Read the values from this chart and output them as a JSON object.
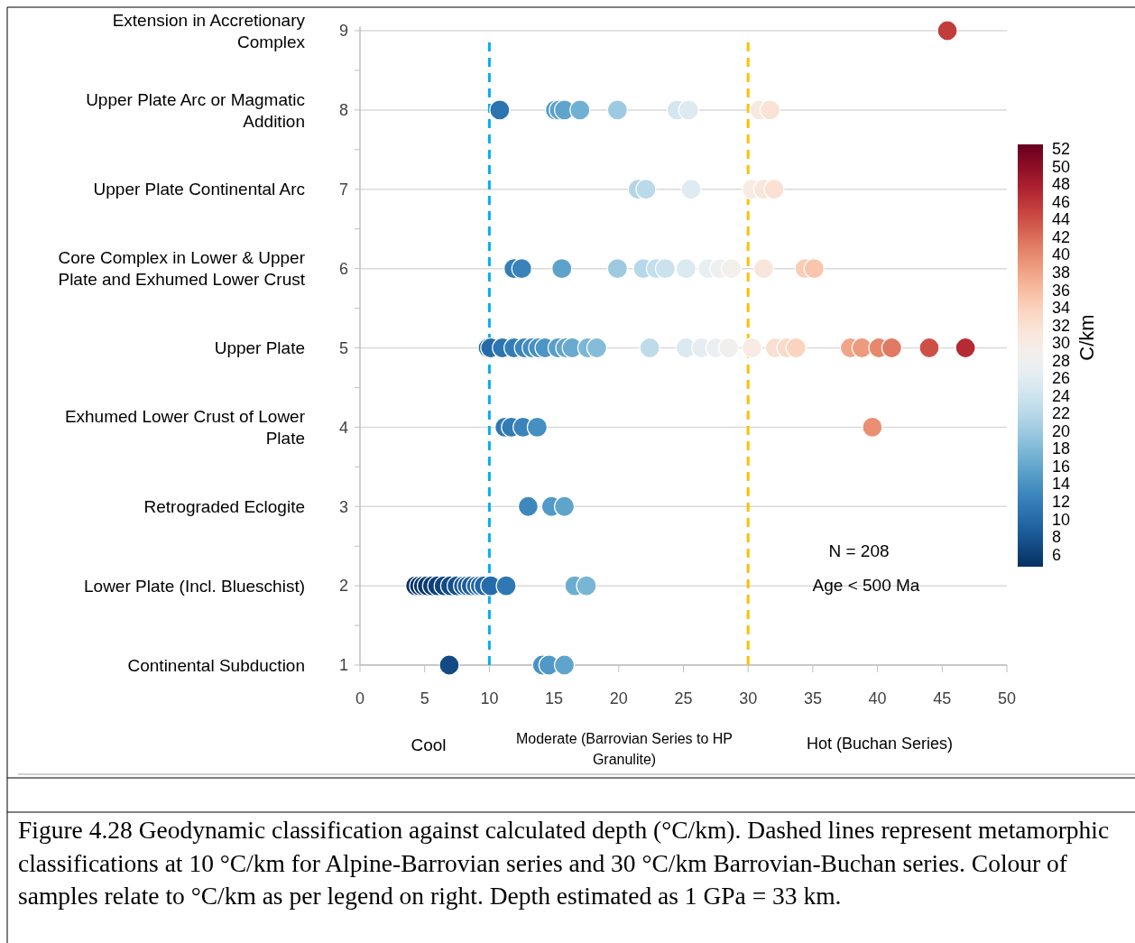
{
  "chart_data": {
    "type": "scatter",
    "ylabel": null,
    "clabel": "C/km",
    "series": [
      {
        "x": [
          45.4,
          10.8,
          15.1,
          15.4,
          15.8,
          17.0,
          19.9,
          24.5,
          25.4,
          30.9,
          31.7,
          21.5,
          22.1,
          25.6,
          30.3,
          31.2,
          32.0,
          11.9,
          12.5,
          15.6,
          19.9,
          21.9,
          22.9,
          23.6,
          25.2,
          26.9,
          27.8,
          28.7,
          31.2,
          34.4,
          35.1,
          9.9,
          10.1,
          11.0,
          11.9,
          12.7,
          13.3,
          13.8,
          14.3,
          15.3,
          15.9,
          16.4,
          17.6,
          18.3,
          22.4,
          25.2,
          26.4,
          27.5,
          28.5,
          30.3,
          32.1,
          33.0,
          33.7,
          37.9,
          38.8,
          40.1,
          41.1,
          44.0,
          46.8,
          11.2,
          11.7,
          12.6,
          13.7,
          39.6,
          13.0,
          14.8,
          15.8,
          4.3,
          4.6,
          4.9,
          5.2,
          5.6,
          6.0,
          6.5,
          7.0,
          7.5,
          8.0,
          8.3,
          8.6,
          9.0,
          9.3,
          9.6,
          10.1,
          11.3,
          16.6,
          17.5,
          6.9,
          14.1,
          14.6,
          15.8
        ],
        "values": [
          9,
          8,
          8,
          8,
          8,
          8,
          8,
          8,
          8,
          8,
          8,
          7,
          7,
          7,
          7,
          7,
          7,
          6,
          6,
          6,
          6,
          6,
          6,
          6,
          6,
          6,
          6,
          6,
          6,
          6,
          6,
          5,
          5,
          5,
          5,
          5,
          5,
          5,
          5,
          5,
          5,
          5,
          5,
          5,
          5,
          5,
          5,
          5,
          5,
          5,
          5,
          5,
          5,
          5,
          5,
          5,
          5,
          5,
          5,
          4,
          4,
          4,
          4,
          4,
          3,
          3,
          3,
          2,
          2,
          2,
          2,
          2,
          2,
          2,
          2,
          2,
          2,
          2,
          2,
          2,
          2,
          2,
          2,
          2,
          2,
          2,
          1,
          1,
          1,
          1
        ],
        "cvalues": [
          45.4,
          10.8,
          15.1,
          15.4,
          15.8,
          17.0,
          19.9,
          24.5,
          25.4,
          30.9,
          31.7,
          21.5,
          22.1,
          25.6,
          30.3,
          31.2,
          32.0,
          11.9,
          12.5,
          15.6,
          19.9,
          21.9,
          22.9,
          23.6,
          25.2,
          26.9,
          27.8,
          28.7,
          31.2,
          34.4,
          35.1,
          9.9,
          10.1,
          11.0,
          11.9,
          12.7,
          13.3,
          13.8,
          14.3,
          15.3,
          15.9,
          16.4,
          17.6,
          18.3,
          22.4,
          25.2,
          26.4,
          27.5,
          28.5,
          30.3,
          32.1,
          33.0,
          33.7,
          37.9,
          38.8,
          40.1,
          41.1,
          44.0,
          46.8,
          11.2,
          11.7,
          12.6,
          13.7,
          39.6,
          13.0,
          14.8,
          15.8,
          4.3,
          4.6,
          4.9,
          5.2,
          5.6,
          6.0,
          6.5,
          7.0,
          7.5,
          8.0,
          8.3,
          8.6,
          9.0,
          9.3,
          9.6,
          10.1,
          11.3,
          16.6,
          17.5,
          6.9,
          14.1,
          14.6,
          15.8
        ]
      }
    ],
    "xlim": [
      0,
      50
    ],
    "xticks": [
      0,
      5,
      10,
      15,
      20,
      25,
      30,
      35,
      40,
      45,
      50
    ],
    "ylim": [
      1,
      9.05
    ],
    "yticks": [
      1,
      {
        "value": 1.5,
        "label": null
      },
      2,
      {
        "value": 2.5,
        "label": null
      },
      3,
      {
        "value": 3.5,
        "label": null
      },
      4,
      {
        "value": 4.5,
        "label": null
      },
      5,
      {
        "value": 5.5,
        "label": null
      },
      6,
      {
        "value": 6.5,
        "label": null
      },
      7,
      {
        "value": 7.5,
        "label": null
      },
      8,
      {
        "value": 8.5,
        "label": null
      },
      9
    ],
    "clim": [
      4.6,
      52.5
    ],
    "cticks": [
      6,
      8,
      10,
      12,
      14,
      16,
      18,
      20,
      22,
      24,
      26,
      28,
      30,
      32,
      34,
      36,
      38,
      40,
      42,
      44,
      46,
      48,
      50,
      52
    ],
    "grid": "y",
    "marker": "circle",
    "ref_lines": [
      {
        "axis": "x",
        "value": 10,
        "color": "#00b0f0",
        "line_style": "dashed"
      },
      {
        "axis": "x",
        "value": 30,
        "color": "#ffc000",
        "line_style": "dashed"
      }
    ],
    "annotations": [
      "Continental Subduction",
      "Lower Plate (Incl. Blueschist)",
      "Retrograded Eclogite",
      "Exhumed Lower Crust of Lower Plate",
      "Upper Plate",
      "Core Complex in Lower & Upper Plate and Exhumed Lower Crust",
      "Upper Plate Continental Arc",
      "Upper Plate Arc or Magmatic Addition",
      "Extension in Accretionary Complex",
      "N = 208",
      "Age < 500 Ma",
      "Cool",
      "Moderate (Barrovian Series to HP Granulite)",
      "Hot (Buchan Series)",
      "Figure 4.28 Geodynamic classification against calculated depth (°C/km). Dashed lines represent metamorphic classifications at 10 °C/km for Alpine-Barrovian series and 30 °C/km Barrovian-Buchan series. Colour of samples relate to °C/km as per legend on right. Depth estimated as 1 GPa = 33 km."
    ]
  }
}
